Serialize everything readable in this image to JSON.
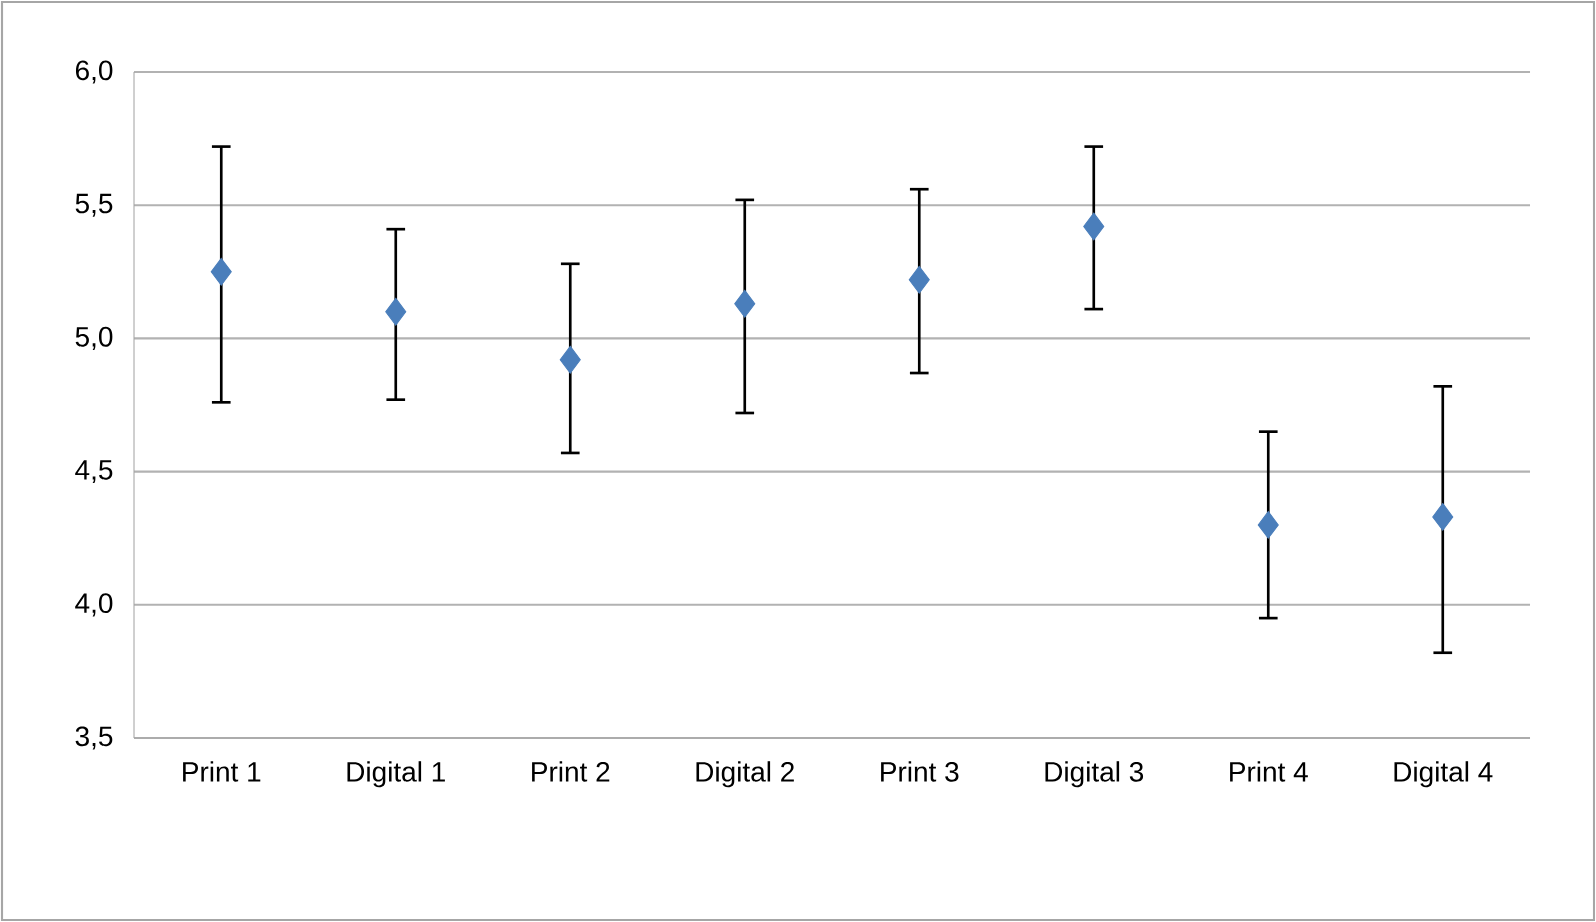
{
  "chart_data": {
    "type": "scatter",
    "categories": [
      "Print 1",
      "Digital 1",
      "Print 2",
      "Digital 2",
      "Print 3",
      "Digital 3",
      "Print 4",
      "Digital 4"
    ],
    "values": [
      5.25,
      5.1,
      4.92,
      5.13,
      5.22,
      5.42,
      4.3,
      4.33
    ],
    "errors": [
      [
        4.76,
        5.72
      ],
      [
        4.77,
        5.41
      ],
      [
        4.57,
        5.28
      ],
      [
        4.72,
        5.52
      ],
      [
        4.87,
        5.56
      ],
      [
        5.11,
        5.72
      ],
      [
        3.95,
        4.65
      ],
      [
        3.82,
        4.82
      ]
    ],
    "color": "#4a7ebb",
    "marker": "diamond",
    "grid": "y",
    "ylim": [
      3.5,
      6.0
    ],
    "yticks": [
      {
        "value": 3.5,
        "label": "3,5"
      },
      {
        "value": 4.0,
        "label": "4,0"
      },
      {
        "value": 4.5,
        "label": "4,5"
      },
      {
        "value": 5.0,
        "label": "5,0"
      },
      {
        "value": 5.5,
        "label": "5,5"
      },
      {
        "value": 6.0,
        "label": "6,0"
      }
    ]
  }
}
